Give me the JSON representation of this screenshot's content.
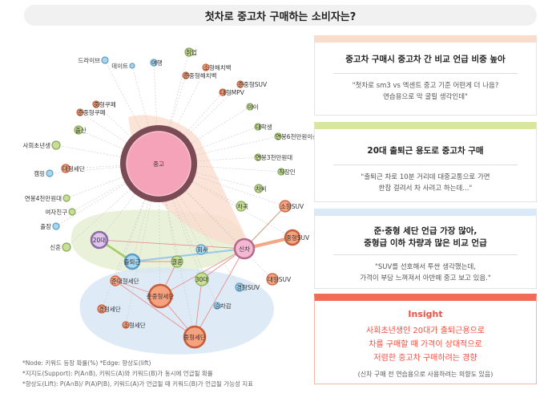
{
  "title": "첫차로 중고차 구매하는 소비자는?",
  "nodes": [
    {
      "id": "중고",
      "label": "중고",
      "kind": "hub",
      "color": "#f5a3b8"
    },
    {
      "id": "신차",
      "label": "신차",
      "kind": "pink",
      "color": "#f5b8d4"
    },
    {
      "id": "20대",
      "label": "20대",
      "kind": "purple",
      "color": "#dfc4ee"
    },
    {
      "id": "30대",
      "label": "30대",
      "kind": "green",
      "color": "#c6df95"
    },
    {
      "id": "출퇴근",
      "label": "출퇴근",
      "kind": "blue",
      "color": "#a9d6ef"
    },
    {
      "id": "결혼",
      "label": "결혼",
      "kind": "green",
      "color": "#c6df95"
    },
    {
      "id": "준중형세단",
      "label": "준중형세단",
      "kind": "orange",
      "color": "#f6a27e"
    },
    {
      "id": "중형세단",
      "label": "중형세단",
      "kind": "orange",
      "color": "#f6a27e"
    },
    {
      "id": "중형SUV",
      "label": "중형SUV",
      "kind": "orange",
      "color": "#f6a27e"
    },
    {
      "id": "소형SUV",
      "label": "소형SUV",
      "kind": "orange",
      "color": "#f6a27e"
    },
    {
      "id": "대형SUV",
      "label": "대형SUV",
      "kind": "orange",
      "color": "#f6a27e"
    },
    {
      "id": "경형SUV",
      "label": "경형SUV",
      "kind": "blue",
      "color": "#a9d6ef"
    },
    {
      "id": "준대형세단",
      "label": "준대형세단",
      "kind": "orange",
      "color": "#f6a27e"
    },
    {
      "id": "경형세단",
      "label": "경형세단",
      "kind": "orange",
      "color": "#f6a27e"
    },
    {
      "id": "소형세단",
      "label": "소형세단",
      "kind": "orange",
      "color": "#f6a27e"
    },
    {
      "id": "승차감",
      "label": "승차감",
      "kind": "blue",
      "color": "#a9d6ef"
    },
    {
      "id": "회사",
      "label": "회사",
      "kind": "blue",
      "color": "#a9d6ef"
    },
    {
      "id": "차곡",
      "label": "차곡",
      "kind": "green",
      "color": "#c6df95"
    },
    {
      "id": "차비",
      "label": "차비",
      "kind": "green",
      "color": "#c6df95"
    },
    {
      "id": "직장인",
      "label": "직장인",
      "kind": "green",
      "color": "#c6df95"
    },
    {
      "id": "연봉3천만원대",
      "label": "연봉3천만원대",
      "kind": "green",
      "color": "#c6df95"
    },
    {
      "id": "연봉6천만원이상",
      "label": "연봉6천만원이상",
      "kind": "green",
      "color": "#c6df95"
    },
    {
      "id": "대학생",
      "label": "대학생",
      "kind": "green",
      "color": "#c6df95"
    },
    {
      "id": "아이",
      "label": "아이",
      "kind": "green",
      "color": "#c6df95"
    },
    {
      "id": "준중형SUV",
      "label": "준중형SUV",
      "kind": "orange",
      "color": "#f6a27e"
    },
    {
      "id": "대형MPV",
      "label": "대형MPV",
      "kind": "orange",
      "color": "#f6a27e"
    },
    {
      "id": "소형해치백",
      "label": "소형해치백",
      "kind": "orange",
      "color": "#f6a27e"
    },
    {
      "id": "준중형해치백",
      "label": "준중형해치백",
      "kind": "orange",
      "color": "#f6a27e"
    },
    {
      "id": "취업",
      "label": "취업",
      "kind": "green",
      "color": "#c6df95"
    },
    {
      "id": "여행",
      "label": "여행",
      "kind": "blue",
      "color": "#a9d6ef"
    },
    {
      "id": "데이트",
      "label": "데이트",
      "kind": "blue",
      "color": "#a9d6ef"
    },
    {
      "id": "드라이브",
      "label": "드라이브",
      "kind": "blue",
      "color": "#a9d6ef"
    },
    {
      "id": "중형쿠페",
      "label": "중형쿠페",
      "kind": "orange",
      "color": "#f6a27e"
    },
    {
      "id": "준중형쿠페",
      "label": "준중형쿠페",
      "kind": "orange",
      "color": "#f6a27e"
    },
    {
      "id": "출산",
      "label": "출산",
      "kind": "green",
      "color": "#c6df95"
    },
    {
      "id": "사회초년생",
      "label": "사회초년생",
      "kind": "green",
      "color": "#c6df95"
    },
    {
      "id": "대형세단",
      "label": "대형세단",
      "kind": "orange",
      "color": "#f6a27e"
    },
    {
      "id": "캠핑",
      "label": "캠핑",
      "kind": "blue",
      "color": "#a9d6ef"
    },
    {
      "id": "연봉4천만원대",
      "label": "연봉4천만원대",
      "kind": "green",
      "color": "#c6df95"
    },
    {
      "id": "여자친구",
      "label": "여자친구",
      "kind": "green",
      "color": "#c6df95"
    },
    {
      "id": "출장",
      "label": "출장",
      "kind": "blue",
      "color": "#a9d6ef"
    },
    {
      "id": "신혼",
      "label": "신혼",
      "kind": "green",
      "color": "#c6df95"
    }
  ],
  "cards": [
    {
      "head": "중고차 구매시 중고차 간 비교 언급 비중 높아",
      "quote1": "\"첫차로 sm3 vs 엑센트 중고 기준 어떤게 더 나음?",
      "quote2": "연습용으로 막 굴릴 생각인데\"",
      "accent": "#f9dccb"
    },
    {
      "head": "20대 출퇴근 용도로 중고차 구매",
      "quote1": "\"출퇴근 차로 10분 거리데 대중교통으로 가면",
      "quote2": "한참 걸려서 차 사려고 하는데...\"",
      "accent": "#d7e89e"
    },
    {
      "head1": "준·중형 세단 언급 가장 많아,",
      "head2": "중형급 이하 차량과 많은 비교 언급",
      "quote1": "\"SUV를 선호해서 투싼 생각했는데,",
      "quote2": "가격이 부담 느껴져서 아반떼 중고 보고 있음.\"",
      "accent": "#d9e9f5"
    }
  ],
  "insight": {
    "title": "Insight",
    "line1": "사회초년생인 20대가 출퇴근용으로",
    "line2": "차를 구매할 때 가격이 상대적으로",
    "line3": "저렴한 중고차 구매하려는 경향",
    "sub": "(신차 구매 전 연습용으로 사용하려는 의향도 있음)"
  },
  "notes": {
    "line1": "*Node: 키워드 등장 확률(%)   *Edge: 향상도(lift)",
    "line2": "*지지도(Support): P(A∩B), 키워드(A)와 키워드(B)가 동시에 언급될 확률",
    "line3": "*향상도(Lift): P(A∩B)/ P(A)P(B), 키워드(A)가 언급될 때 키워드(B)가 언급될 가능성 지표"
  }
}
